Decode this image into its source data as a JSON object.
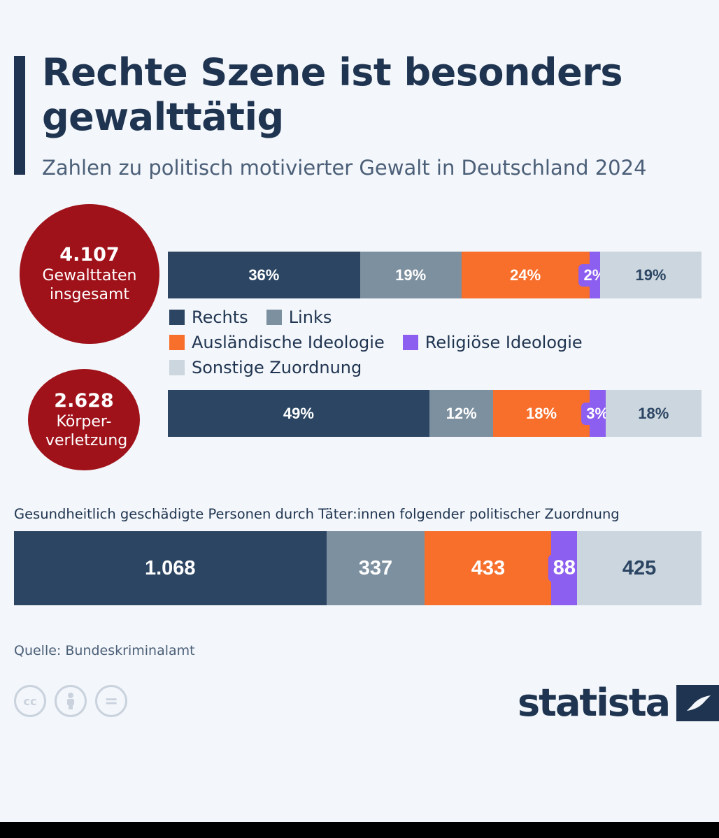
{
  "header": {
    "title": "Rechte Szene ist besonders gewalttätig",
    "subtitle": "Zahlen zu politisch motivierter Gewalt in Deutschland 2024"
  },
  "colors": {
    "rechts": "#2b4563",
    "links": "#7d909f",
    "auslaendisch": "#f76f2b",
    "religioes": "#8c5ff0",
    "sonstige": "#ccd6de",
    "circle": "#a0121a"
  },
  "circles": [
    {
      "number": "4.107",
      "label": "Gewalttaten insgesamt"
    },
    {
      "number": "2.628",
      "label": "Körper-verletzung"
    }
  ],
  "legend": [
    {
      "label": "Rechts"
    },
    {
      "label": "Links"
    },
    {
      "label": "Ausländische Ideologie"
    },
    {
      "label": "Religiöse Ideologie"
    },
    {
      "label": "Sonstige Zuordnung"
    }
  ],
  "chart_data": [
    {
      "type": "bar",
      "stacked": true,
      "orientation": "horizontal",
      "categories": [
        "Rechts",
        "Links",
        "Ausländische Ideologie",
        "Religiöse Ideologie",
        "Sonstige Zuordnung"
      ],
      "values": [
        36,
        19,
        24,
        2,
        19
      ],
      "labels": [
        "36%",
        "19%",
        "24%",
        "2%",
        "19%"
      ]
    },
    {
      "type": "bar",
      "stacked": true,
      "orientation": "horizontal",
      "categories": [
        "Rechts",
        "Links",
        "Ausländische Ideologie",
        "Religiöse Ideologie",
        "Sonstige Zuordnung"
      ],
      "values": [
        49,
        12,
        18,
        3,
        18
      ],
      "labels": [
        "49%",
        "12%",
        "18%",
        "3%",
        "18%"
      ]
    },
    {
      "type": "bar",
      "stacked": true,
      "orientation": "horizontal",
      "title": "Gesundheitlich geschädigte Personen durch Täter:innen folgender politischer Zuordnung",
      "categories": [
        "Rechts",
        "Links",
        "Ausländische Ideologie",
        "Religiöse Ideologie",
        "Sonstige Zuordnung"
      ],
      "values": [
        1068,
        337,
        433,
        88,
        425
      ],
      "labels": [
        "1.068",
        "337",
        "433",
        "88",
        "425"
      ]
    }
  ],
  "footer": {
    "source": "Quelle: Bundeskriminalamt",
    "license_icons": [
      "cc-icon",
      "by-icon",
      "nd-icon"
    ],
    "cc_text": "cc",
    "nd_text": "=",
    "logo": "statista"
  }
}
